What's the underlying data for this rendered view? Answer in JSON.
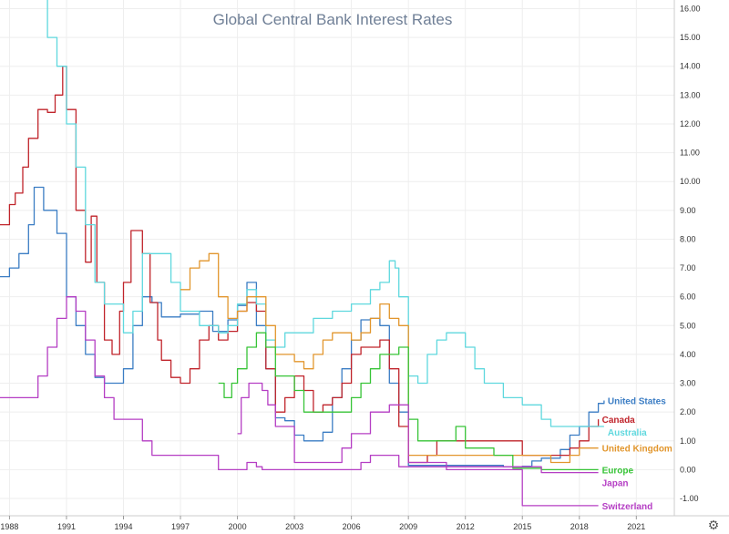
{
  "chart_data": {
    "type": "line",
    "title": "Global Central Bank Interest Rates",
    "xlabel": "",
    "ylabel": "",
    "xlim": [
      1987.5,
      2023.0
    ],
    "ylim": [
      -1.6,
      16.3
    ],
    "grid": true,
    "x_ticks": [
      1988,
      1991,
      1994,
      1997,
      2000,
      2003,
      2006,
      2009,
      2012,
      2015,
      2018,
      2021
    ],
    "x_tick_labels": [
      "1988",
      "1991",
      "1994",
      "1997",
      "2000",
      "2003",
      "2006",
      "2009",
      "2012",
      "2015",
      "2018",
      "2021"
    ],
    "y_ticks": [
      -1,
      0,
      1,
      2,
      3,
      4,
      5,
      6,
      7,
      8,
      9,
      10,
      11,
      12,
      13,
      14,
      15,
      16
    ],
    "y_tick_labels": [
      "-1.00",
      "0.00",
      "1.00",
      "2.00",
      "3.00",
      "4.00",
      "5.00",
      "6.00",
      "7.00",
      "8.00",
      "9.00",
      "10.00",
      "11.00",
      "12.00",
      "13.00",
      "14.00",
      "15.00",
      "16.00"
    ],
    "legend_placement": "labels at right end of each line",
    "series": [
      {
        "name": "United States",
        "color": "#3b7dc4",
        "x": [
          1987.5,
          1988.0,
          1988.5,
          1989.0,
          1989.3,
          1989.8,
          1990.5,
          1991.0,
          1991.5,
          1992.0,
          1992.5,
          1993.0,
          1993.5,
          1994.0,
          1994.5,
          1995.0,
          1995.5,
          1996.0,
          1997.0,
          1998.0,
          1998.7,
          1999.0,
          1999.5,
          2000.0,
          2000.5,
          2001.0,
          2001.5,
          2002.0,
          2002.5,
          2003.0,
          2003.5,
          2004.0,
          2004.5,
          2005.0,
          2005.5,
          2006.0,
          2006.5,
          2007.0,
          2007.5,
          2008.0,
          2008.5,
          2009.0,
          2010.0,
          2012.0,
          2014.0,
          2015.0,
          2015.5,
          2016.0,
          2016.5,
          2017.0,
          2017.5,
          2018.0,
          2018.5,
          2019.0,
          2019.3
        ],
        "y": [
          6.7,
          7.0,
          7.5,
          8.5,
          9.8,
          9.0,
          8.2,
          6.0,
          5.0,
          4.0,
          3.2,
          3.0,
          3.0,
          3.5,
          5.0,
          6.0,
          5.8,
          5.3,
          5.4,
          5.5,
          4.8,
          4.8,
          5.2,
          5.7,
          6.5,
          5.0,
          3.5,
          1.8,
          1.7,
          1.2,
          1.0,
          1.0,
          1.3,
          2.5,
          3.5,
          4.5,
          5.2,
          5.25,
          5.0,
          3.0,
          2.0,
          0.15,
          0.15,
          0.15,
          0.1,
          0.12,
          0.3,
          0.4,
          0.4,
          0.7,
          1.2,
          1.5,
          2.0,
          2.3,
          2.4
        ]
      },
      {
        "name": "Canada",
        "color": "#c0242b",
        "x": [
          1987.5,
          1988.0,
          1988.3,
          1988.7,
          1989.0,
          1989.5,
          1990.0,
          1990.4,
          1990.8,
          1991.0,
          1991.5,
          1992.0,
          1992.3,
          1992.6,
          1993.0,
          1993.4,
          1993.8,
          1994.0,
          1994.4,
          1995.0,
          1995.4,
          1995.8,
          1996.0,
          1996.5,
          1997.0,
          1997.5,
          1998.0,
          1998.5,
          1999.0,
          1999.5,
          2000.0,
          2000.5,
          2001.0,
          2001.5,
          2002.0,
          2002.5,
          2003.0,
          2003.5,
          2004.0,
          2004.5,
          2005.0,
          2005.5,
          2006.0,
          2006.5,
          2007.0,
          2007.5,
          2008.0,
          2008.5,
          2009.0,
          2010.0,
          2010.5,
          2011.0,
          2014.0,
          2015.0,
          2016.0,
          2017.0,
          2017.5,
          2018.0,
          2018.5,
          2019.0
        ],
        "y": [
          8.5,
          9.2,
          9.6,
          10.5,
          11.5,
          12.5,
          12.4,
          13.0,
          14.0,
          12.5,
          9.0,
          7.2,
          8.8,
          6.5,
          4.5,
          4.0,
          5.5,
          6.5,
          8.3,
          7.5,
          5.8,
          4.5,
          3.8,
          3.2,
          3.0,
          3.5,
          4.5,
          5.0,
          4.5,
          4.8,
          5.5,
          5.8,
          5.5,
          3.5,
          2.0,
          2.5,
          3.25,
          2.75,
          2.0,
          2.25,
          2.5,
          3.0,
          4.0,
          4.25,
          4.25,
          4.5,
          3.5,
          1.5,
          0.25,
          0.5,
          1.0,
          1.0,
          1.0,
          0.5,
          0.5,
          0.5,
          0.75,
          1.0,
          1.5,
          1.75
        ]
      },
      {
        "name": "Australia",
        "color": "#5fd8de",
        "x": [
          1989.5,
          1990.0,
          1990.5,
          1991.0,
          1991.5,
          1992.0,
          1992.5,
          1993.0,
          1994.0,
          1994.5,
          1995.0,
          1996.0,
          1996.5,
          1997.0,
          1998.0,
          1999.0,
          1999.5,
          2000.0,
          2000.5,
          2001.0,
          2001.5,
          2002.0,
          2002.5,
          2003.0,
          2004.0,
          2005.0,
          2006.0,
          2007.0,
          2007.5,
          2008.0,
          2008.3,
          2008.5,
          2009.0,
          2009.5,
          2010.0,
          2010.5,
          2011.0,
          2012.0,
          2012.5,
          2013.0,
          2014.0,
          2015.0,
          2016.0,
          2016.5,
          2019.0,
          2019.3
        ],
        "y": [
          16.5,
          15.0,
          14.0,
          12.0,
          10.5,
          8.5,
          6.5,
          5.75,
          4.75,
          5.5,
          7.5,
          7.5,
          6.5,
          5.5,
          5.0,
          4.75,
          5.0,
          5.75,
          6.25,
          5.75,
          4.5,
          4.25,
          4.75,
          4.75,
          5.25,
          5.5,
          5.75,
          6.25,
          6.5,
          7.25,
          7.0,
          6.0,
          3.25,
          3.0,
          4.0,
          4.5,
          4.75,
          4.25,
          3.5,
          3.0,
          2.5,
          2.25,
          1.75,
          1.5,
          1.5,
          1.5
        ]
      },
      {
        "name": "United Kingdom",
        "color": "#e2962d",
        "x": [
          1997.0,
          1997.5,
          1998.0,
          1998.5,
          1999.0,
          1999.5,
          2000.0,
          2000.5,
          2001.0,
          2001.5,
          2002.0,
          2003.0,
          2003.5,
          2004.0,
          2004.5,
          2005.0,
          2006.0,
          2006.5,
          2007.0,
          2007.5,
          2008.0,
          2008.5,
          2009.0,
          2010.0,
          2015.0,
          2016.5,
          2017.5,
          2018.0,
          2019.0
        ],
        "y": [
          6.25,
          7.0,
          7.25,
          7.5,
          6.0,
          5.25,
          5.5,
          6.0,
          6.0,
          5.0,
          4.0,
          3.75,
          3.5,
          4.0,
          4.5,
          4.75,
          4.5,
          4.75,
          5.25,
          5.75,
          5.25,
          5.0,
          0.5,
          0.5,
          0.5,
          0.25,
          0.5,
          0.75,
          0.75
        ]
      },
      {
        "name": "Europe",
        "color": "#37c437",
        "x": [
          1999.0,
          1999.3,
          1999.7,
          2000.0,
          2000.5,
          2001.0,
          2001.5,
          2002.0,
          2003.0,
          2003.5,
          2005.5,
          2006.0,
          2006.5,
          2007.0,
          2007.5,
          2008.0,
          2008.5,
          2009.0,
          2009.5,
          2011.0,
          2011.5,
          2012.0,
          2013.5,
          2014.5,
          2016.0,
          2019.0
        ],
        "y": [
          3.0,
          2.5,
          3.0,
          3.5,
          4.25,
          4.75,
          4.25,
          3.25,
          2.75,
          2.0,
          2.0,
          2.5,
          3.0,
          3.5,
          4.0,
          4.0,
          4.25,
          1.75,
          1.0,
          1.0,
          1.5,
          0.75,
          0.5,
          0.05,
          0.0,
          0.0
        ]
      },
      {
        "name": "Japan",
        "color": "#b53ec4",
        "x": [
          1987.5,
          1989.0,
          1989.5,
          1990.0,
          1990.5,
          1991.0,
          1991.5,
          1992.0,
          1992.5,
          1993.0,
          1993.5,
          1995.0,
          1995.5,
          1998.0,
          1999.0,
          2000.5,
          2001.0,
          2001.3,
          2006.5,
          2007.0,
          2008.5,
          2009.0,
          2016.0,
          2019.0
        ],
        "y": [
          2.5,
          2.5,
          3.25,
          4.25,
          5.25,
          6.0,
          5.5,
          4.5,
          3.25,
          2.5,
          1.75,
          1.0,
          0.5,
          0.5,
          0.0,
          0.25,
          0.1,
          0.0,
          0.25,
          0.5,
          0.1,
          0.1,
          -0.1,
          -0.1
        ]
      },
      {
        "name": "Switzerland",
        "color": "#b53ec4",
        "x": [
          2000.0,
          2000.2,
          2000.6,
          2001.0,
          2001.3,
          2001.6,
          2002.0,
          2003.0,
          2004.0,
          2005.5,
          2006.0,
          2007.0,
          2008.0,
          2008.5,
          2009.0,
          2011.0,
          2014.5,
          2015.0,
          2019.0
        ],
        "y": [
          1.25,
          2.5,
          3.0,
          3.0,
          2.75,
          2.25,
          1.5,
          0.25,
          0.25,
          0.75,
          1.25,
          2.0,
          2.25,
          2.25,
          0.25,
          0.0,
          0.0,
          -1.25,
          -1.25
        ]
      }
    ]
  }
}
